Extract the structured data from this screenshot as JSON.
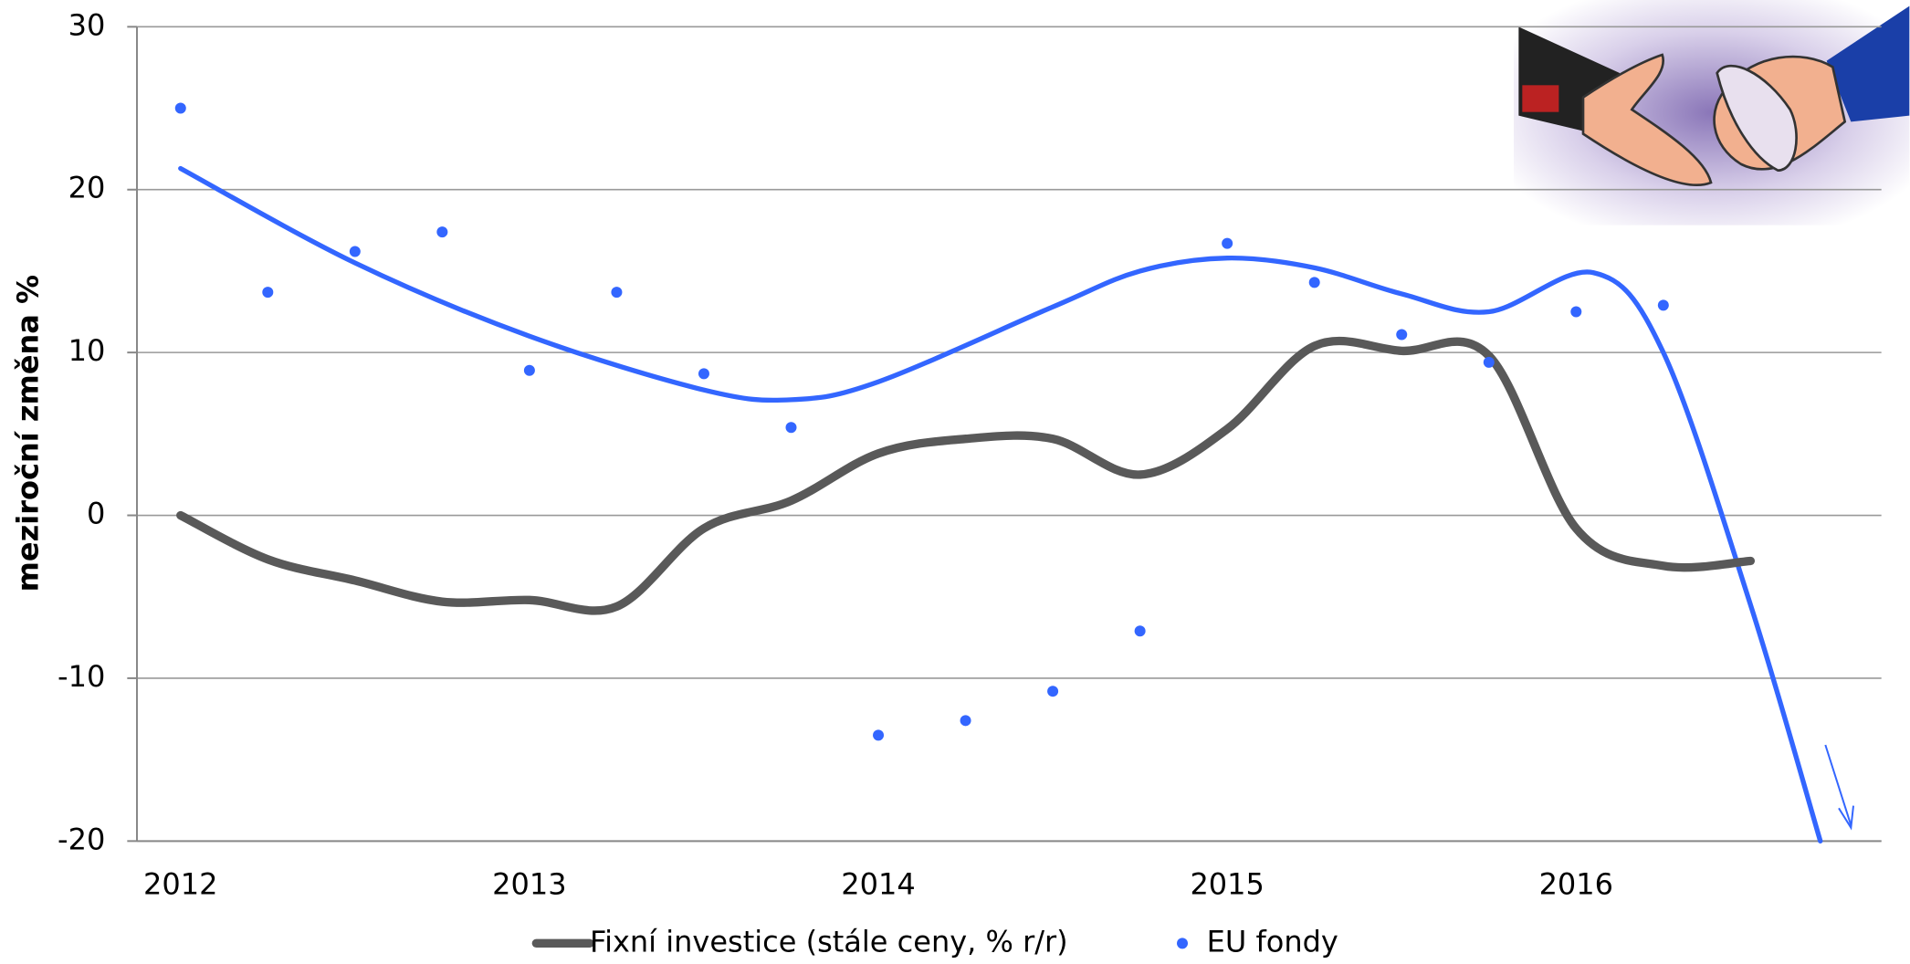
{
  "chart_data": {
    "type": "line",
    "ylabel": "meziroční změna %",
    "xlim": [
      2011.875,
      2016.875
    ],
    "xticks": [
      2012,
      2013,
      2014,
      2015,
      2016
    ],
    "ylim": [
      -20,
      30
    ],
    "yticks": [
      -20,
      -10,
      0,
      10,
      20,
      30
    ],
    "grid": true,
    "legend": "bottom",
    "series": [
      {
        "name": "Fixní investice (stále ceny, % r/r)",
        "type": "line",
        "color": "#595959",
        "x": [
          2012,
          2012.25,
          2012.5,
          2012.75,
          2013,
          2013.25,
          2013.5,
          2013.75,
          2014,
          2014.25,
          2014.5,
          2014.75,
          2015,
          2015.25,
          2015.5,
          2015.75,
          2016,
          2016.25,
          2016.5
        ],
        "values": [
          0,
          -2.7,
          -4,
          -5.3,
          -5.2,
          -5.6,
          -0.8,
          0.9,
          3.8,
          4.7,
          4.7,
          2.5,
          5.3,
          10.4,
          10.1,
          9.8,
          -0.8,
          -3.1,
          -2.8
        ]
      },
      {
        "name": "EU fondy",
        "type": "scatter",
        "color": "#3366ff",
        "x": [
          2012,
          2012.25,
          2012.5,
          2012.75,
          2013,
          2013.25,
          2013.5,
          2013.75,
          2014,
          2014.25,
          2014.5,
          2014.75,
          2015,
          2015.25,
          2015.5,
          2015.75,
          2016,
          2016.25
        ],
        "values": [
          25,
          13.7,
          16.2,
          17.4,
          8.9,
          13.7,
          8.7,
          5.4,
          -13.5,
          -12.6,
          -10.8,
          -7.1,
          16.7,
          14.3,
          11.1,
          9.4,
          12.5,
          12.9
        ]
      }
    ],
    "trend": {
      "color": "#3366ff",
      "x": [
        2012,
        2012.5,
        2013,
        2013.5,
        2013.75,
        2014,
        2014.5,
        2014.75,
        2015,
        2015.25,
        2015.5,
        2015.75,
        2016.05,
        2016.25,
        2016.5,
        2016.7
      ],
      "values": [
        21.3,
        15.5,
        11,
        7.7,
        7.1,
        8.2,
        12.8,
        15,
        15.8,
        15.2,
        13.6,
        12.5,
        14.9,
        10,
        -5.5,
        -20
      ]
    }
  }
}
